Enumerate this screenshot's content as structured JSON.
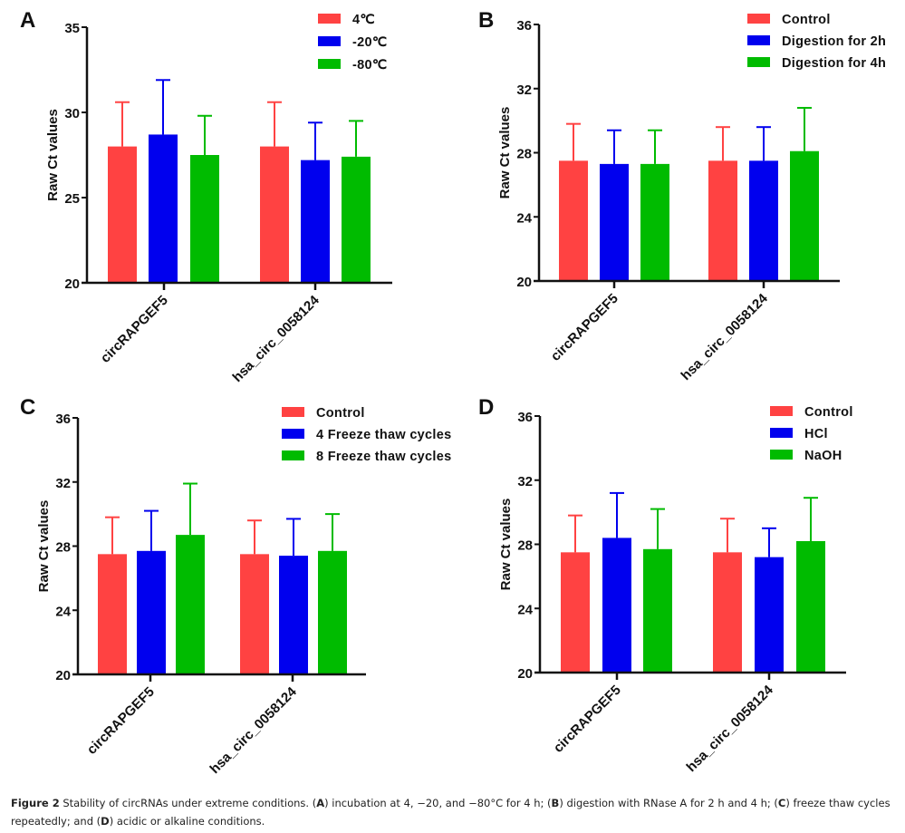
{
  "figure": {
    "caption": {
      "figure_label": "Figure 2",
      "text_1": " Stability of circRNAs under extreme conditions. (",
      "A": "A",
      "text_2": ") incubation at 4, −20, and −80°C for 4 h; (",
      "B": "B",
      "text_3": ") digestion with RNase A for 2 h and 4 h; (",
      "C": "C",
      "text_4": ") freeze thaw cycles repeatedly; and (",
      "D": "D",
      "text_5": ") acidic or alkaline conditions."
    }
  },
  "colors": {
    "series_1": "#FF4242",
    "series_2": "#0000EE",
    "series_3": "#00BB00",
    "axis": "#111111"
  },
  "chart_data": [
    {
      "panel": "A",
      "type": "bar",
      "title": "",
      "xlabel": "",
      "ylabel": "Raw Ct values",
      "ylim": [
        20,
        35
      ],
      "yticks": [
        20,
        25,
        30,
        35
      ],
      "grid": false,
      "legend_position": "top-right",
      "categories": [
        "circRAPGEF5",
        "hsa_circ_0058124"
      ],
      "series": [
        {
          "name": "4℃",
          "values": [
            28.0,
            28.0
          ],
          "error_upper": [
            30.6,
            30.6
          ]
        },
        {
          "name": "-20℃",
          "values": [
            28.7,
            27.2
          ],
          "error_upper": [
            31.9,
            29.4
          ]
        },
        {
          "name": "-80℃",
          "values": [
            27.5,
            27.4
          ],
          "error_upper": [
            29.8,
            29.5
          ]
        }
      ]
    },
    {
      "panel": "B",
      "type": "bar",
      "title": "",
      "xlabel": "",
      "ylabel": "Raw Ct values",
      "ylim": [
        20,
        36
      ],
      "yticks": [
        20,
        24,
        28,
        32,
        36
      ],
      "grid": false,
      "legend_position": "top-right",
      "categories": [
        "circRAPGEF5",
        "hsa_circ_0058124"
      ],
      "series": [
        {
          "name": "Control",
          "values": [
            27.5,
            27.5
          ],
          "error_upper": [
            29.8,
            29.6
          ]
        },
        {
          "name": "Digestion for 2h",
          "values": [
            27.3,
            27.5
          ],
          "error_upper": [
            29.4,
            29.6
          ]
        },
        {
          "name": "Digestion for 4h",
          "values": [
            27.3,
            28.1
          ],
          "error_upper": [
            29.4,
            30.8
          ]
        }
      ]
    },
    {
      "panel": "C",
      "type": "bar",
      "title": "",
      "xlabel": "",
      "ylabel": "Raw Ct values",
      "ylim": [
        20,
        36
      ],
      "yticks": [
        20,
        24,
        28,
        32,
        36
      ],
      "grid": false,
      "legend_position": "top-right",
      "categories": [
        "circRAPGEF5",
        "hsa_circ_0058124"
      ],
      "series": [
        {
          "name": "Control",
          "values": [
            27.5,
            27.5
          ],
          "error_upper": [
            29.8,
            29.6
          ]
        },
        {
          "name": "4 Freeze thaw cycles",
          "values": [
            27.7,
            27.4
          ],
          "error_upper": [
            30.2,
            29.7
          ]
        },
        {
          "name": "8 Freeze thaw cycles",
          "values": [
            28.7,
            27.7
          ],
          "error_upper": [
            31.9,
            30.0
          ]
        }
      ]
    },
    {
      "panel": "D",
      "type": "bar",
      "title": "",
      "xlabel": "",
      "ylabel": "Raw Ct values",
      "ylim": [
        20,
        36
      ],
      "yticks": [
        20,
        24,
        28,
        32,
        36
      ],
      "grid": false,
      "legend_position": "top-right",
      "categories": [
        "circRAPGEF5",
        "hsa_circ_0058124"
      ],
      "series": [
        {
          "name": "Control",
          "values": [
            27.5,
            27.5
          ],
          "error_upper": [
            29.8,
            29.6
          ]
        },
        {
          "name": "HCl",
          "values": [
            28.4,
            27.2
          ],
          "error_upper": [
            31.2,
            29.0
          ]
        },
        {
          "name": "NaOH",
          "values": [
            27.7,
            28.2
          ],
          "error_upper": [
            30.2,
            30.9
          ]
        }
      ]
    }
  ]
}
